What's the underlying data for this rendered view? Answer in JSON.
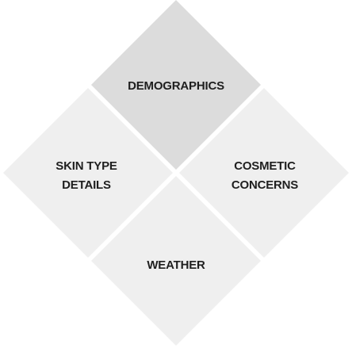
{
  "diagram": {
    "segments": [
      {
        "id": "demographics",
        "lines": [
          "DEMOGRAPHICS"
        ],
        "fill": "#dcdcdc"
      },
      {
        "id": "skin-type",
        "lines": [
          "SKIN TYPE",
          "DETAILS"
        ],
        "fill": "#efefef"
      },
      {
        "id": "cosmetic-concerns",
        "lines": [
          "COSMETIC",
          "CONCERNS"
        ],
        "fill": "#efefef"
      },
      {
        "id": "weather",
        "lines": [
          "WEATHER"
        ],
        "fill": "#efefef"
      }
    ]
  }
}
